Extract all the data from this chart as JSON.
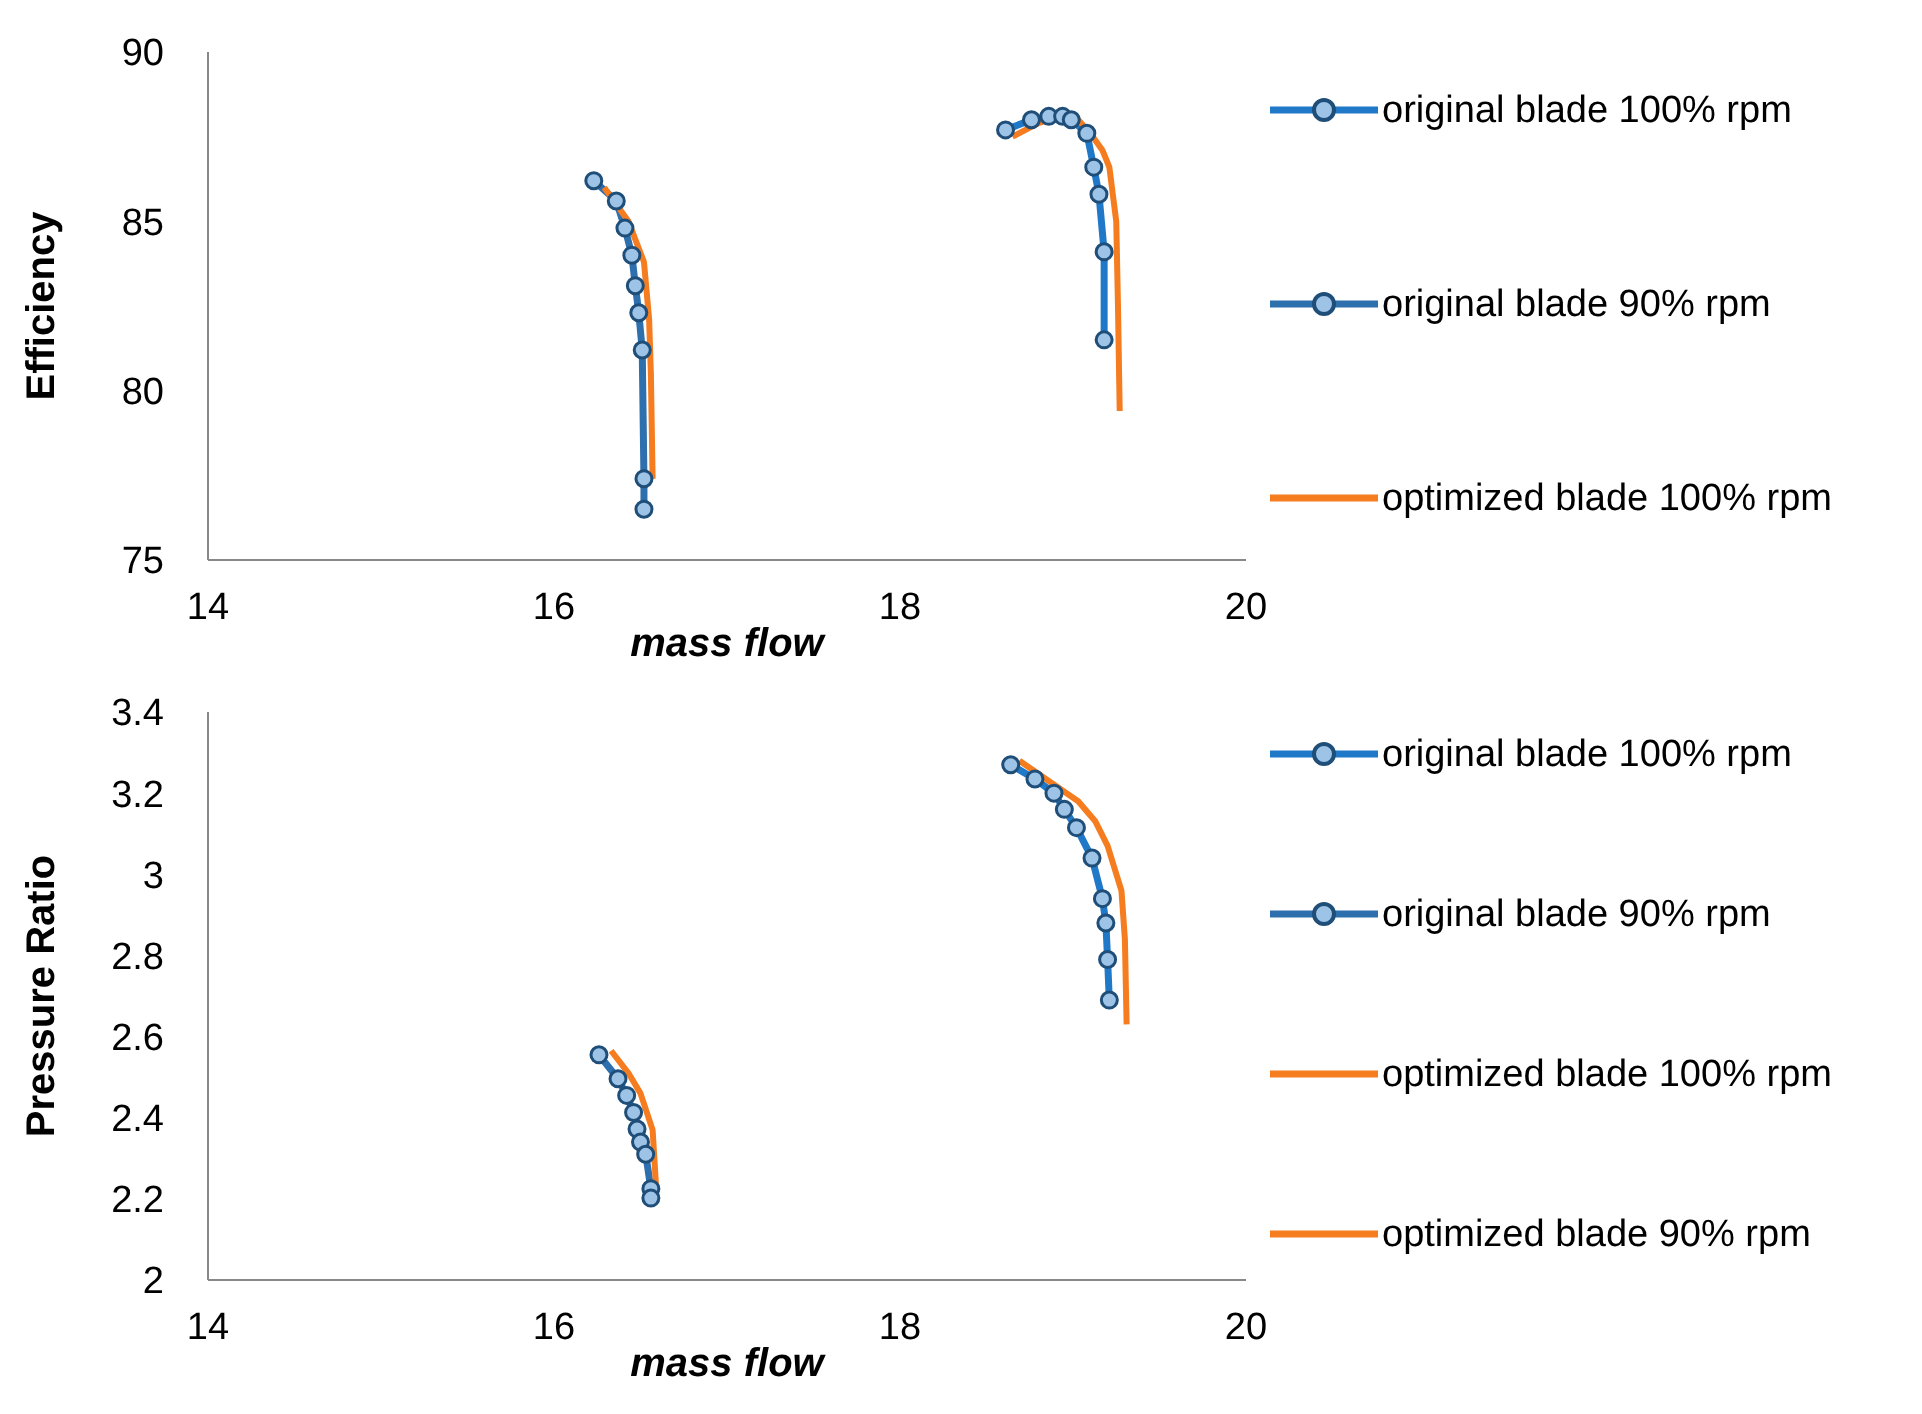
{
  "chart_data": [
    {
      "type": "line",
      "ylabel": "Efficiency",
      "xlabel": "mass flow",
      "xlim": [
        14,
        20
      ],
      "xticks": [
        14,
        16,
        18,
        20
      ],
      "ylim": [
        75,
        90
      ],
      "yticks": [
        75,
        80,
        85,
        90
      ],
      "legend": "right",
      "series": [
        {
          "name": "original blade 100% rpm",
          "color": "#1f78c8",
          "marker": "circle",
          "x": [
            18.61,
            18.76,
            18.86,
            18.94,
            18.99,
            19.08,
            19.12,
            19.15,
            19.18,
            19.18
          ],
          "values": [
            87.7,
            88.0,
            88.1,
            88.1,
            88.0,
            87.6,
            86.6,
            85.8,
            84.1,
            81.5
          ]
        },
        {
          "name": "original blade 90% rpm",
          "color": "#2e6fae",
          "marker": "circle",
          "x": [
            16.23,
            16.36,
            16.41,
            16.45,
            16.47,
            16.49,
            16.51,
            16.52,
            16.52
          ],
          "values": [
            86.2,
            85.6,
            84.8,
            84.0,
            83.1,
            82.3,
            81.2,
            77.4,
            76.5
          ]
        },
        {
          "name": "optimized blade 100% rpm",
          "color": "#f57c1f",
          "marker": "none",
          "x": [
            18.65,
            18.8,
            18.93,
            19.03,
            19.1,
            19.17,
            19.21,
            19.25,
            19.26,
            19.27
          ],
          "values": [
            87.5,
            87.9,
            88.1,
            88.0,
            87.6,
            87.1,
            86.6,
            85.0,
            82.5,
            79.4
          ]
        },
        {
          "color": "#f57c1f",
          "marker": "none",
          "x": [
            16.29,
            16.43,
            16.52,
            16.55,
            16.56,
            16.57
          ],
          "values": [
            86.0,
            85.0,
            83.8,
            82.1,
            80.5,
            77.4
          ]
        }
      ]
    },
    {
      "type": "line",
      "ylabel": "Pressure Ratio",
      "xlabel": "mass flow",
      "xlim": [
        14,
        20
      ],
      "xticks": [
        14,
        16,
        18,
        20
      ],
      "ylim": [
        2,
        3.4
      ],
      "yticks": [
        2,
        2.2,
        2.4,
        2.6,
        2.8,
        3,
        3.2,
        3.4
      ],
      "legend": "right",
      "series": [
        {
          "name": "original blade 100% rpm",
          "color": "#1f78c8",
          "marker": "circle",
          "x": [
            18.64,
            18.78,
            18.89,
            18.95,
            19.02,
            19.11,
            19.17,
            19.19,
            19.2,
            19.21
          ],
          "values": [
            3.27,
            3.235,
            3.2,
            3.16,
            3.115,
            3.04,
            2.94,
            2.88,
            2.79,
            2.69
          ]
        },
        {
          "name": "original blade 90% rpm",
          "color": "#2e6fae",
          "marker": "circle",
          "x": [
            16.26,
            16.37,
            16.42,
            16.46,
            16.48,
            16.5,
            16.53,
            16.56,
            16.56
          ],
          "values": [
            2.555,
            2.496,
            2.455,
            2.413,
            2.372,
            2.34,
            2.31,
            2.225,
            2.202
          ]
        },
        {
          "name": "optimized blade 100% rpm",
          "color": "#f57c1f",
          "marker": "none",
          "x": [
            18.69,
            18.86,
            19.03,
            19.13,
            19.2,
            19.28,
            19.3,
            19.31
          ],
          "values": [
            3.28,
            3.23,
            3.18,
            3.13,
            3.07,
            2.96,
            2.84,
            2.63
          ]
        },
        {
          "name": "optimized blade 90% rpm",
          "color": "#f57c1f",
          "marker": "none",
          "x": [
            16.33,
            16.43,
            16.5,
            16.57,
            16.59
          ],
          "values": [
            2.565,
            2.51,
            2.46,
            2.37,
            2.23
          ]
        }
      ]
    }
  ]
}
